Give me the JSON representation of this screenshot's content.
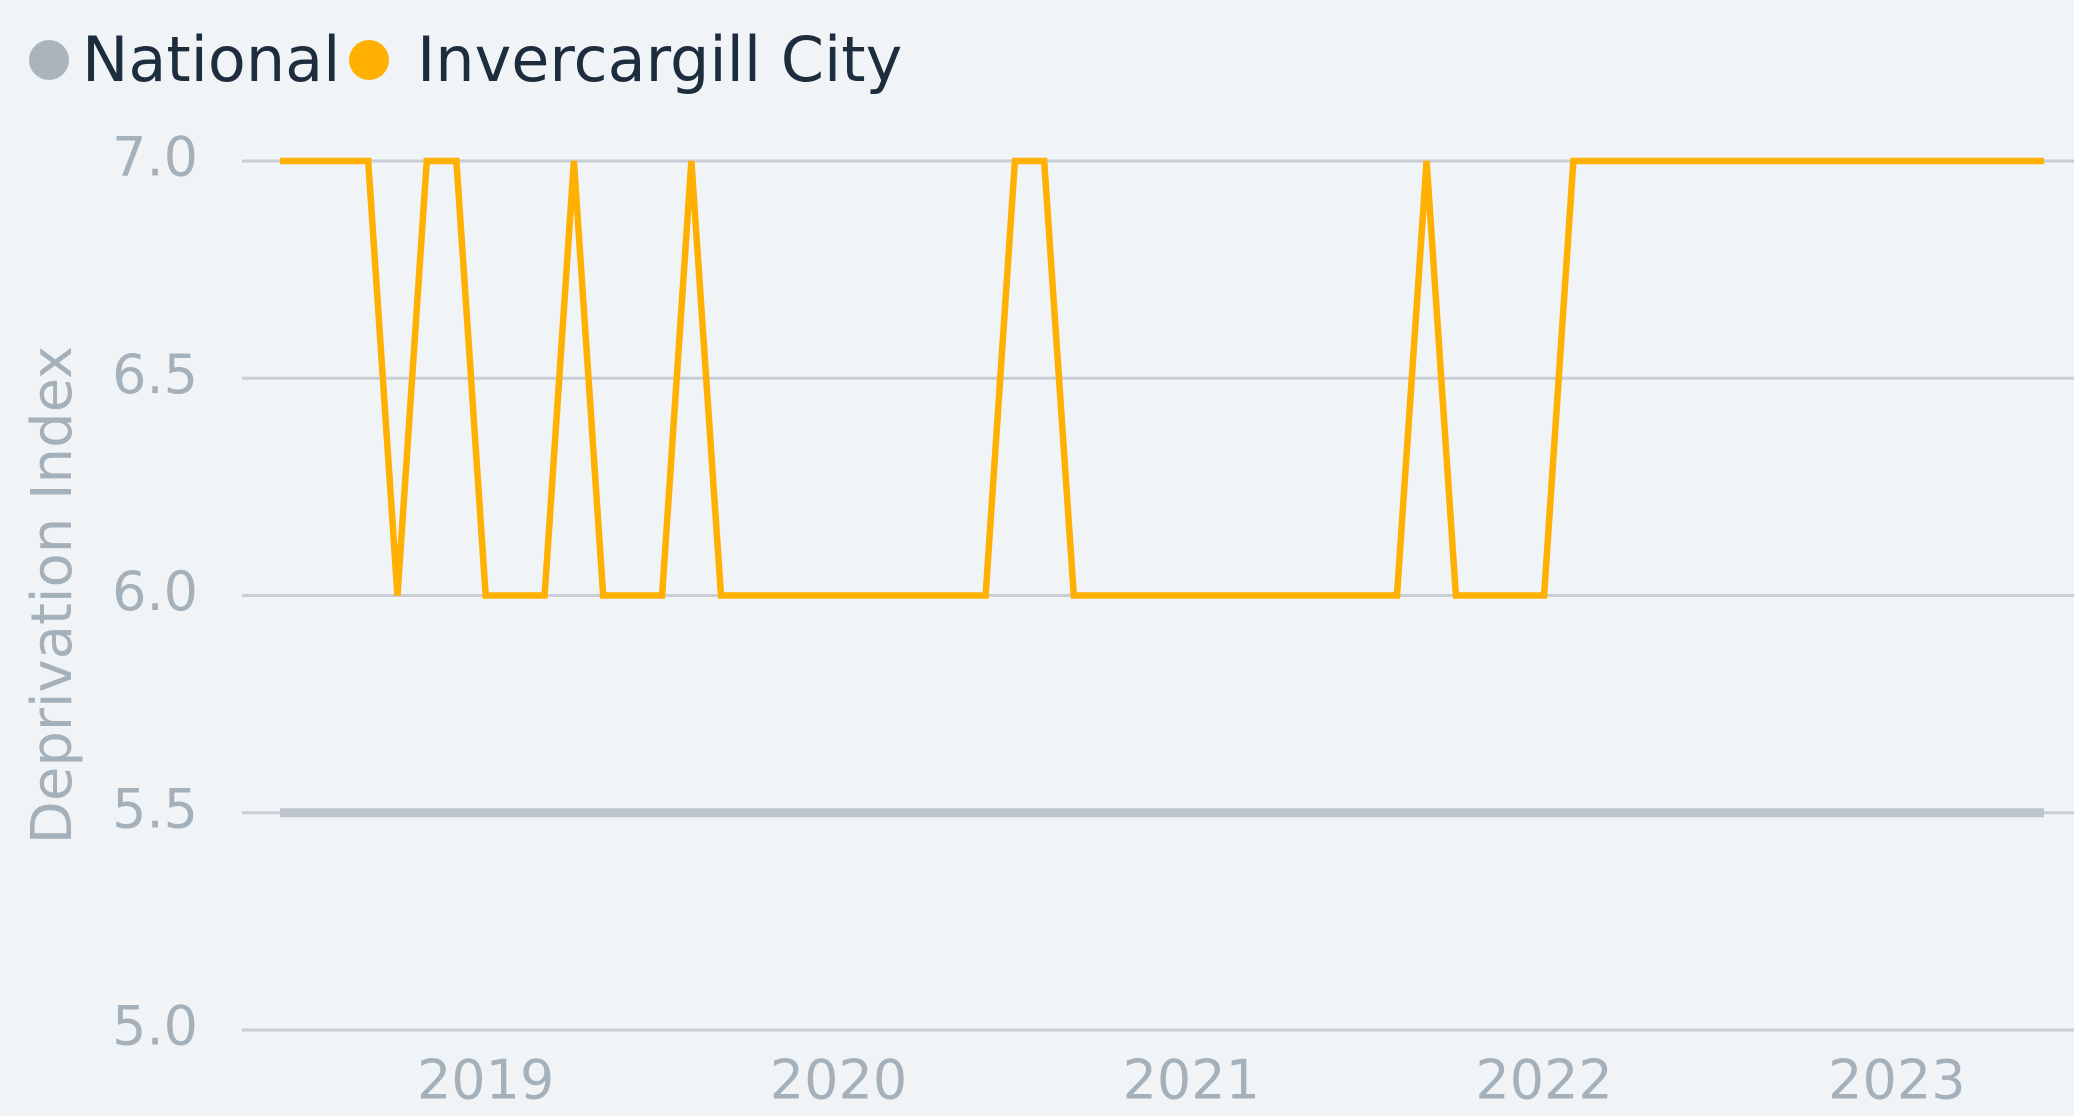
{
  "chart_data": {
    "type": "line",
    "y_label": "Deprivation Index",
    "x": [
      2018.417,
      2018.5,
      2018.583,
      2018.667,
      2018.75,
      2018.833,
      2018.917,
      2019.0,
      2019.083,
      2019.167,
      2019.25,
      2019.333,
      2019.417,
      2019.5,
      2019.583,
      2019.667,
      2019.75,
      2019.833,
      2019.917,
      2020.0,
      2020.083,
      2020.167,
      2020.25,
      2020.333,
      2020.417,
      2020.5,
      2020.583,
      2020.667,
      2020.75,
      2020.833,
      2020.917,
      2021.0,
      2021.083,
      2021.167,
      2021.25,
      2021.333,
      2021.417,
      2021.5,
      2021.583,
      2021.667,
      2021.75,
      2021.833,
      2021.917,
      2022.0,
      2022.083,
      2022.167,
      2022.25,
      2022.333,
      2022.417,
      2022.5,
      2022.583,
      2022.667,
      2022.75,
      2022.833,
      2022.917,
      2023.0,
      2023.083,
      2023.167,
      2023.25,
      2023.333,
      2023.417
    ],
    "series": [
      {
        "name": "National",
        "color": "#bcc5cc",
        "values": [
          5.5,
          5.5,
          5.5,
          5.5,
          5.5,
          5.5,
          5.5,
          5.5,
          5.5,
          5.5,
          5.5,
          5.5,
          5.5,
          5.5,
          5.5,
          5.5,
          5.5,
          5.5,
          5.5,
          5.5,
          5.5,
          5.5,
          5.5,
          5.5,
          5.5,
          5.5,
          5.5,
          5.5,
          5.5,
          5.5,
          5.5,
          5.5,
          5.5,
          5.5,
          5.5,
          5.5,
          5.5,
          5.5,
          5.5,
          5.5,
          5.5,
          5.5,
          5.5,
          5.5,
          5.5,
          5.5,
          5.5,
          5.5,
          5.5,
          5.5,
          5.5,
          5.5,
          5.5,
          5.5,
          5.5,
          5.5,
          5.5,
          5.5,
          5.5,
          5.5,
          5.5
        ]
      },
      {
        "name": "Invercargill City",
        "color": "#ffb000",
        "values": [
          7,
          7,
          7,
          7,
          6,
          7,
          7,
          6,
          6,
          6,
          7,
          6,
          6,
          6,
          7,
          6,
          6,
          6,
          6,
          6,
          6,
          6,
          6,
          6,
          6,
          7,
          7,
          6,
          6,
          6,
          6,
          6,
          6,
          6,
          6,
          6,
          6,
          6,
          6,
          7,
          6,
          6,
          6,
          6,
          7,
          7,
          7,
          7,
          7,
          7,
          7,
          7,
          7,
          7,
          7,
          7,
          7,
          7,
          7,
          7,
          7
        ]
      }
    ],
    "legend_marker_color": [
      "#a9b4bc",
      "#ffb000"
    ],
    "xlim": [
      2018.417,
      2023.417
    ],
    "xticks": [
      2019,
      2020,
      2021,
      2022,
      2023
    ],
    "ylim": [
      5.0,
      7.0
    ],
    "yticks": [
      {
        "value": 5.0,
        "label": "5.0"
      },
      {
        "value": 5.5,
        "label": "5.5"
      },
      {
        "value": 6.0,
        "label": "6.0"
      },
      {
        "value": 6.5,
        "label": "6.5"
      },
      {
        "value": 7.0,
        "label": "7.0"
      }
    ],
    "grid": true,
    "legend": "top-left"
  }
}
